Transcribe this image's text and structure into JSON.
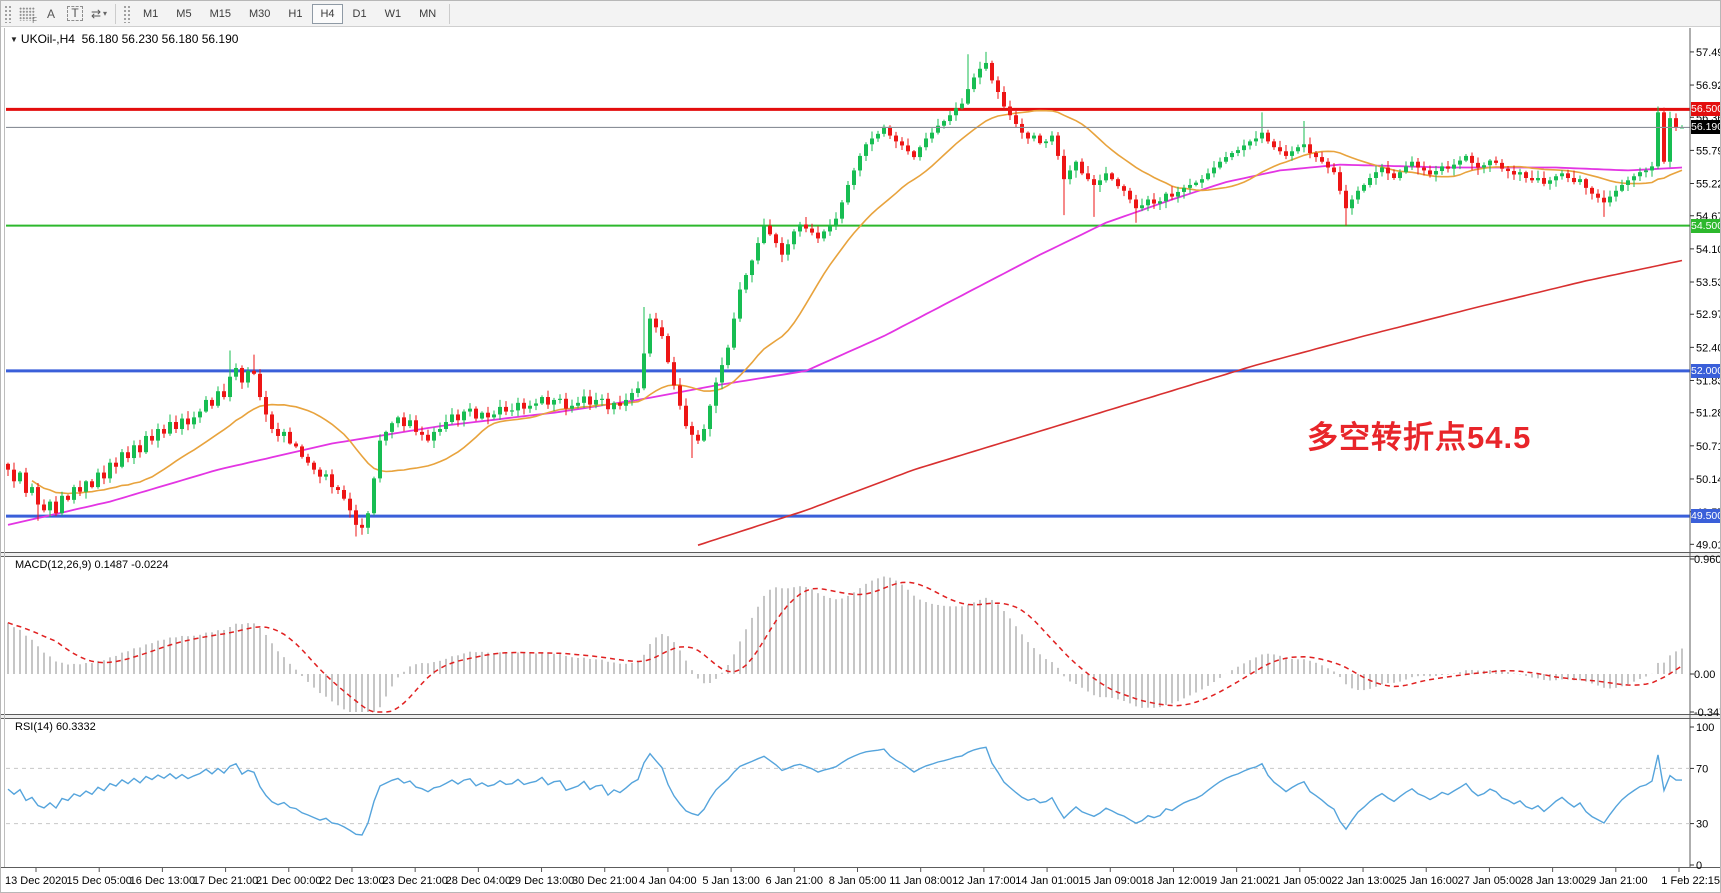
{
  "toolbar": {
    "tools": [
      {
        "name": "expert-panel",
        "label": "F"
      },
      {
        "name": "text-label",
        "label": "A"
      },
      {
        "name": "text-box",
        "label": "T"
      },
      {
        "name": "cycle-symbols",
        "label": "⇄"
      }
    ],
    "dropdown_caret": "▾",
    "timeframes": [
      "M1",
      "M5",
      "M15",
      "M30",
      "H1",
      "H4",
      "D1",
      "W1",
      "MN"
    ],
    "active_timeframe": "H4"
  },
  "chart": {
    "collapse_icon": "▼",
    "title": "UKOil-,H4  56.180 56.230 56.180 56.190",
    "annotation": {
      "text": "多空转折点54.5",
      "color": "#e8252a"
    }
  },
  "price_axis": {
    "ticks": [
      "57.490",
      "56.920",
      "56.365",
      "55.795",
      "55.225",
      "54.670",
      "54.100",
      "53.530",
      "52.975",
      "52.405",
      "51.835",
      "51.280",
      "50.710",
      "50.140",
      "49.575",
      "49.015"
    ]
  },
  "macd_panel": {
    "label": "MACD(12,26,9) 0.1487 -0.0224",
    "ticks": [
      "0.9604",
      "0.00",
      "-0.347"
    ]
  },
  "rsi_panel": {
    "label": "RSI(14) 60.3332",
    "ticks": [
      "100",
      "70",
      "30",
      "0"
    ]
  },
  "time_axis": {
    "labels": [
      "13 Dec 2020",
      "15 Dec 05:00",
      "16 Dec 13:00",
      "17 Dec 21:00",
      "21 Dec 00:00",
      "22 Dec 13:00",
      "23 Dec 21:00",
      "28 Dec 04:00",
      "29 Dec 13:00",
      "30 Dec 21:00",
      "4 Jan 04:00",
      "5 Jan 13:00",
      "6 Jan 21:00",
      "8 Jan 05:00",
      "11 Jan 08:00",
      "12 Jan 17:00",
      "14 Jan 01:00",
      "15 Jan 09:00",
      "18 Jan 12:00",
      "19 Jan 21:00",
      "21 Jan 05:00",
      "22 Jan 13:00",
      "25 Jan 16:00",
      "27 Jan 05:00",
      "28 Jan 13:00",
      "29 Jan 21:00",
      "1 Feb 22:15"
    ]
  },
  "chart_data": {
    "type": "candlestick",
    "symbol": "UKOil-",
    "timeframe": "H4",
    "last_ohlc": {
      "open": "56.180",
      "high": "56.230",
      "low": "56.180",
      "close": "56.190"
    },
    "y_range": [
      48.9,
      57.85
    ],
    "macd_range": [
      -0.347,
      0.9604
    ],
    "rsi_range": [
      0,
      100
    ],
    "colors": {
      "bull": "#17bd52",
      "bear": "#ed1515",
      "ma_fast": "#e8a33d",
      "ma_mid": "#e335e3",
      "ma_slow": "#d83030",
      "macd_bar": "#c6c6c6",
      "macd_signal": "#e02020",
      "rsi_line": "#55a4dc",
      "level_red": "#e30d0d",
      "level_green": "#2db82d",
      "level_blue": "#3a5fd9",
      "price_line": "#8a8f98",
      "price_badge": "#000000"
    },
    "levels": [
      {
        "price": 56.5,
        "label": "56.500",
        "color": "#e30d0d",
        "width": 3
      },
      {
        "price": 54.5,
        "label": "54.500",
        "color": "#2db82d",
        "width": 2
      },
      {
        "price": 52.0,
        "label": "52.000",
        "color": "#3a5fd9",
        "width": 3
      },
      {
        "price": 49.5,
        "label": "49.500",
        "color": "#3a5fd9",
        "width": 3
      }
    ],
    "current_price": {
      "price": 56.19,
      "label": "56.190"
    },
    "rsi_levels": [
      70,
      30
    ],
    "macd_params": [
      12,
      26,
      9
    ],
    "rsi_period": 14,
    "closes": [
      50.3,
      50.1,
      50.25,
      49.9,
      50.0,
      49.7,
      49.6,
      49.75,
      49.55,
      49.85,
      49.78,
      50.0,
      49.92,
      50.1,
      50.0,
      50.25,
      50.15,
      50.42,
      50.35,
      50.6,
      50.5,
      50.72,
      50.6,
      50.88,
      50.8,
      51.0,
      50.92,
      51.12,
      51.0,
      51.18,
      51.08,
      51.2,
      51.3,
      51.5,
      51.4,
      51.65,
      51.55,
      51.9,
      52.05,
      51.8,
      52.0,
      51.95,
      51.55,
      51.25,
      51.0,
      50.88,
      50.95,
      50.75,
      50.7,
      50.52,
      50.42,
      50.3,
      50.18,
      50.22,
      50.0,
      49.95,
      49.8,
      49.6,
      49.35,
      49.3,
      49.55,
      50.15,
      50.8,
      50.95,
      51.1,
      51.2,
      51.05,
      51.15,
      50.95,
      50.9,
      50.8,
      50.95,
      51.0,
      51.12,
      51.25,
      51.15,
      51.3,
      51.35,
      51.18,
      51.28,
      51.2,
      51.25,
      51.38,
      51.3,
      51.32,
      51.45,
      51.35,
      51.4,
      51.44,
      51.55,
      51.42,
      51.5,
      51.52,
      51.35,
      51.4,
      51.45,
      51.56,
      51.42,
      51.5,
      51.52,
      51.34,
      51.45,
      51.4,
      51.5,
      51.62,
      51.7,
      52.3,
      52.9,
      52.75,
      52.6,
      52.15,
      51.75,
      51.4,
      51.05,
      50.9,
      50.8,
      51.0,
      51.4,
      51.8,
      52.1,
      52.4,
      52.9,
      53.4,
      53.65,
      53.9,
      54.2,
      54.5,
      54.35,
      54.2,
      54.0,
      54.18,
      54.4,
      54.52,
      54.45,
      54.38,
      54.28,
      54.4,
      54.5,
      54.62,
      54.9,
      55.2,
      55.45,
      55.7,
      55.9,
      56.0,
      56.08,
      56.2,
      56.05,
      55.95,
      55.88,
      55.78,
      55.68,
      55.85,
      56.0,
      56.1,
      56.22,
      56.3,
      56.4,
      56.52,
      56.6,
      56.85,
      57.05,
      57.2,
      57.3,
      57.0,
      56.8,
      56.55,
      56.4,
      56.25,
      56.1,
      56.0,
      56.05,
      55.92,
      55.95,
      56.05,
      55.7,
      55.3,
      55.45,
      55.6,
      55.4,
      55.3,
      55.2,
      55.28,
      55.4,
      55.3,
      55.18,
      55.1,
      54.95,
      54.8,
      54.85,
      54.95,
      54.88,
      54.92,
      55.05,
      55.0,
      55.08,
      55.15,
      55.2,
      55.24,
      55.3,
      55.4,
      55.5,
      55.6,
      55.68,
      55.75,
      55.8,
      55.88,
      55.95,
      56.0,
      56.1,
      55.95,
      55.85,
      55.78,
      55.7,
      55.78,
      55.85,
      55.9,
      55.75,
      55.68,
      55.6,
      55.5,
      55.42,
      55.1,
      54.8,
      54.95,
      55.1,
      55.2,
      55.32,
      55.42,
      55.5,
      55.4,
      55.32,
      55.42,
      55.52,
      55.6,
      55.5,
      55.45,
      55.38,
      55.44,
      55.52,
      55.48,
      55.55,
      55.62,
      55.7,
      55.58,
      55.5,
      55.54,
      55.62,
      55.58,
      55.48,
      55.44,
      55.38,
      55.42,
      55.32,
      55.28,
      55.32,
      55.22,
      55.28,
      55.35,
      55.4,
      55.32,
      55.25,
      55.3,
      55.15,
      55.05,
      54.98,
      54.9,
      55.0,
      55.1,
      55.2,
      55.28,
      55.35,
      55.42,
      55.45,
      55.52,
      56.45,
      55.6,
      56.35,
      56.19,
      56.19
    ],
    "wick_overrides": {
      "5": {
        "l": 49.42
      },
      "37": {
        "h": 52.35
      },
      "41": {
        "h": 52.28
      },
      "58": {
        "l": 49.15
      },
      "59": {
        "l": 49.18
      },
      "106": {
        "h": 53.1
      },
      "114": {
        "l": 50.5
      },
      "126": {
        "h": 54.62
      },
      "160": {
        "h": 57.45
      },
      "163": {
        "h": 57.49
      },
      "176": {
        "l": 54.68
      },
      "181": {
        "l": 54.65
      },
      "188": {
        "l": 54.55
      },
      "209": {
        "h": 56.45
      },
      "216": {
        "h": 56.3
      },
      "223": {
        "l": 54.5
      },
      "266": {
        "l": 54.65
      },
      "275": {
        "h": 56.55
      },
      "277": {
        "h": 56.46
      },
      "279": {
        "o": 56.18,
        "h": 56.23,
        "l": 56.18
      }
    },
    "ma_fast_period": 20,
    "ma_mid_points": [
      [
        0,
        49.35
      ],
      [
        17,
        49.75
      ],
      [
        35,
        50.3
      ],
      [
        54,
        50.75
      ],
      [
        72,
        51.05
      ],
      [
        91,
        51.28
      ],
      [
        105,
        51.5
      ],
      [
        118,
        51.75
      ],
      [
        133,
        52.0
      ],
      [
        146,
        52.6
      ],
      [
        159,
        53.3
      ],
      [
        172,
        54.0
      ],
      [
        183,
        54.55
      ],
      [
        194,
        54.95
      ],
      [
        203,
        55.25
      ],
      [
        212,
        55.45
      ],
      [
        222,
        55.55
      ],
      [
        240,
        55.5
      ],
      [
        258,
        55.5
      ],
      [
        270,
        55.45
      ],
      [
        279,
        55.5
      ]
    ],
    "ma_slow_points": [
      [
        115,
        49.0
      ],
      [
        133,
        49.6
      ],
      [
        151,
        50.3
      ],
      [
        170,
        50.9
      ],
      [
        189,
        51.5
      ],
      [
        208,
        52.1
      ],
      [
        226,
        52.6
      ],
      [
        245,
        53.1
      ],
      [
        263,
        53.55
      ],
      [
        279,
        53.9
      ]
    ]
  }
}
